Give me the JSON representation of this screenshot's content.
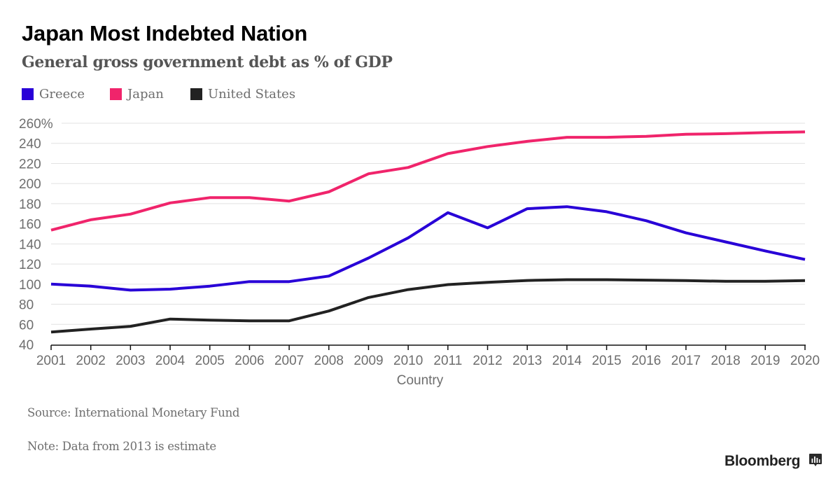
{
  "header": {
    "title": "Japan Most Indebted Nation",
    "subtitle": "General gross government debt as % of GDP"
  },
  "legend": [
    {
      "label": "Greece",
      "color": "#2800d7"
    },
    {
      "label": "Japan",
      "color": "#f0246b"
    },
    {
      "label": "United States",
      "color": "#222222"
    }
  ],
  "footer": {
    "source": "Source: International Monetary Fund",
    "note": "Note: Data from 2013 is estimate",
    "brand": "Bloomberg",
    "brand_icon": "bloomberg-chart-icon"
  },
  "chart_data": {
    "type": "line",
    "title": "Japan Most Indebted Nation",
    "subtitle": "General gross government debt as % of GDP",
    "xlabel": "Country",
    "ylabel": "",
    "x": [
      2001,
      2002,
      2003,
      2004,
      2005,
      2006,
      2007,
      2008,
      2009,
      2010,
      2011,
      2012,
      2013,
      2014,
      2015,
      2016,
      2017,
      2018,
      2019,
      2020
    ],
    "x_tick_labels": [
      "2001",
      "2002",
      "2003",
      "2004",
      "2005",
      "2006",
      "2007",
      "2008",
      "2009",
      "2010",
      "2011",
      "2012",
      "2013",
      "2014",
      "2015",
      "2016",
      "2017",
      "2018",
      "2019",
      "2020"
    ],
    "ylim": [
      40,
      260
    ],
    "y_ticks": [
      40,
      60,
      80,
      100,
      120,
      140,
      160,
      180,
      200,
      220,
      240,
      260
    ],
    "y_tick_labels": [
      "40",
      "60",
      "80",
      "100",
      "120",
      "140",
      "160",
      "180",
      "200",
      "220",
      "240",
      "260%"
    ],
    "grid": true,
    "legend_position": "top-left",
    "series": [
      {
        "name": "Greece",
        "color": "#2800d7",
        "values": [
          100,
          98,
          94,
          95,
          98,
          102.5,
          102.5,
          108,
          126,
          146,
          171,
          156,
          175,
          177,
          172,
          163,
          151,
          142,
          133,
          124.5
        ]
      },
      {
        "name": "Japan",
        "color": "#f0246b",
        "values": [
          153.7,
          164,
          169.6,
          180.8,
          186,
          186,
          182.6,
          191.8,
          209.7,
          216,
          229.8,
          236.8,
          242,
          246,
          246,
          247,
          249,
          249.6,
          250.7,
          251.4
        ]
      },
      {
        "name": "United States",
        "color": "#222222",
        "values": [
          52.3,
          55.3,
          58,
          65.3,
          64.2,
          63.5,
          63.5,
          73.3,
          86.7,
          94.6,
          99.5,
          101.8,
          103.6,
          104.4,
          104.4,
          104,
          103.5,
          102.8,
          102.8,
          103.5
        ]
      }
    ]
  }
}
